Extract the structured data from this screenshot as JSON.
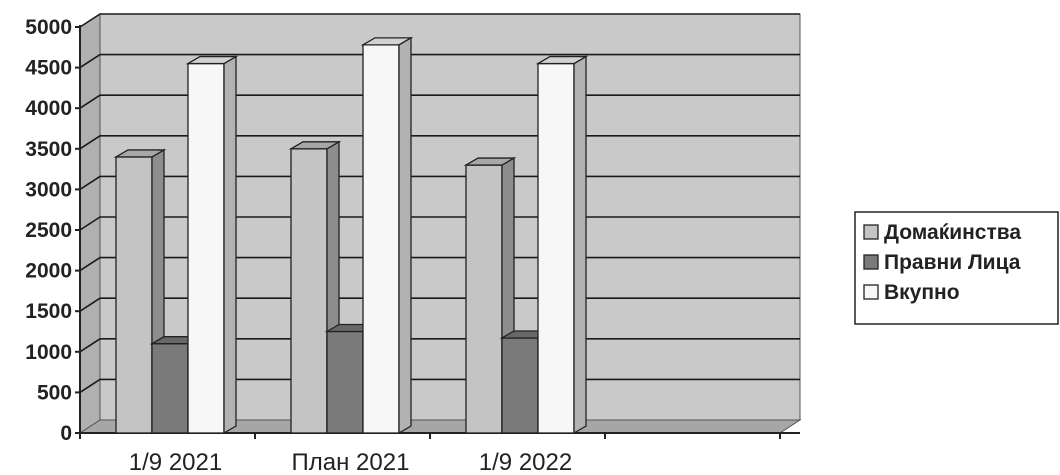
{
  "chart_data": {
    "type": "bar",
    "categories": [
      "1/9 2021",
      "План 2021",
      "1/9 2022"
    ],
    "series": [
      {
        "name": "Домаќинства",
        "values": [
          3400,
          3500,
          3300
        ],
        "color": "#c4c4c4"
      },
      {
        "name": "Правни Лица",
        "values": [
          1100,
          1250,
          1170
        ],
        "color": "#7a7a7a"
      },
      {
        "name": "Вкупно",
        "values": [
          4550,
          4780,
          4550
        ],
        "color": "#f7f7f7"
      }
    ],
    "ylim": [
      0,
      5000
    ],
    "yticks": [
      "0",
      "500",
      "1000",
      "1500",
      "2000",
      "2500",
      "3000",
      "3500",
      "4000",
      "4500",
      "5000"
    ],
    "grid": true,
    "style": "3d-clustered-column",
    "legend_position": "right"
  }
}
